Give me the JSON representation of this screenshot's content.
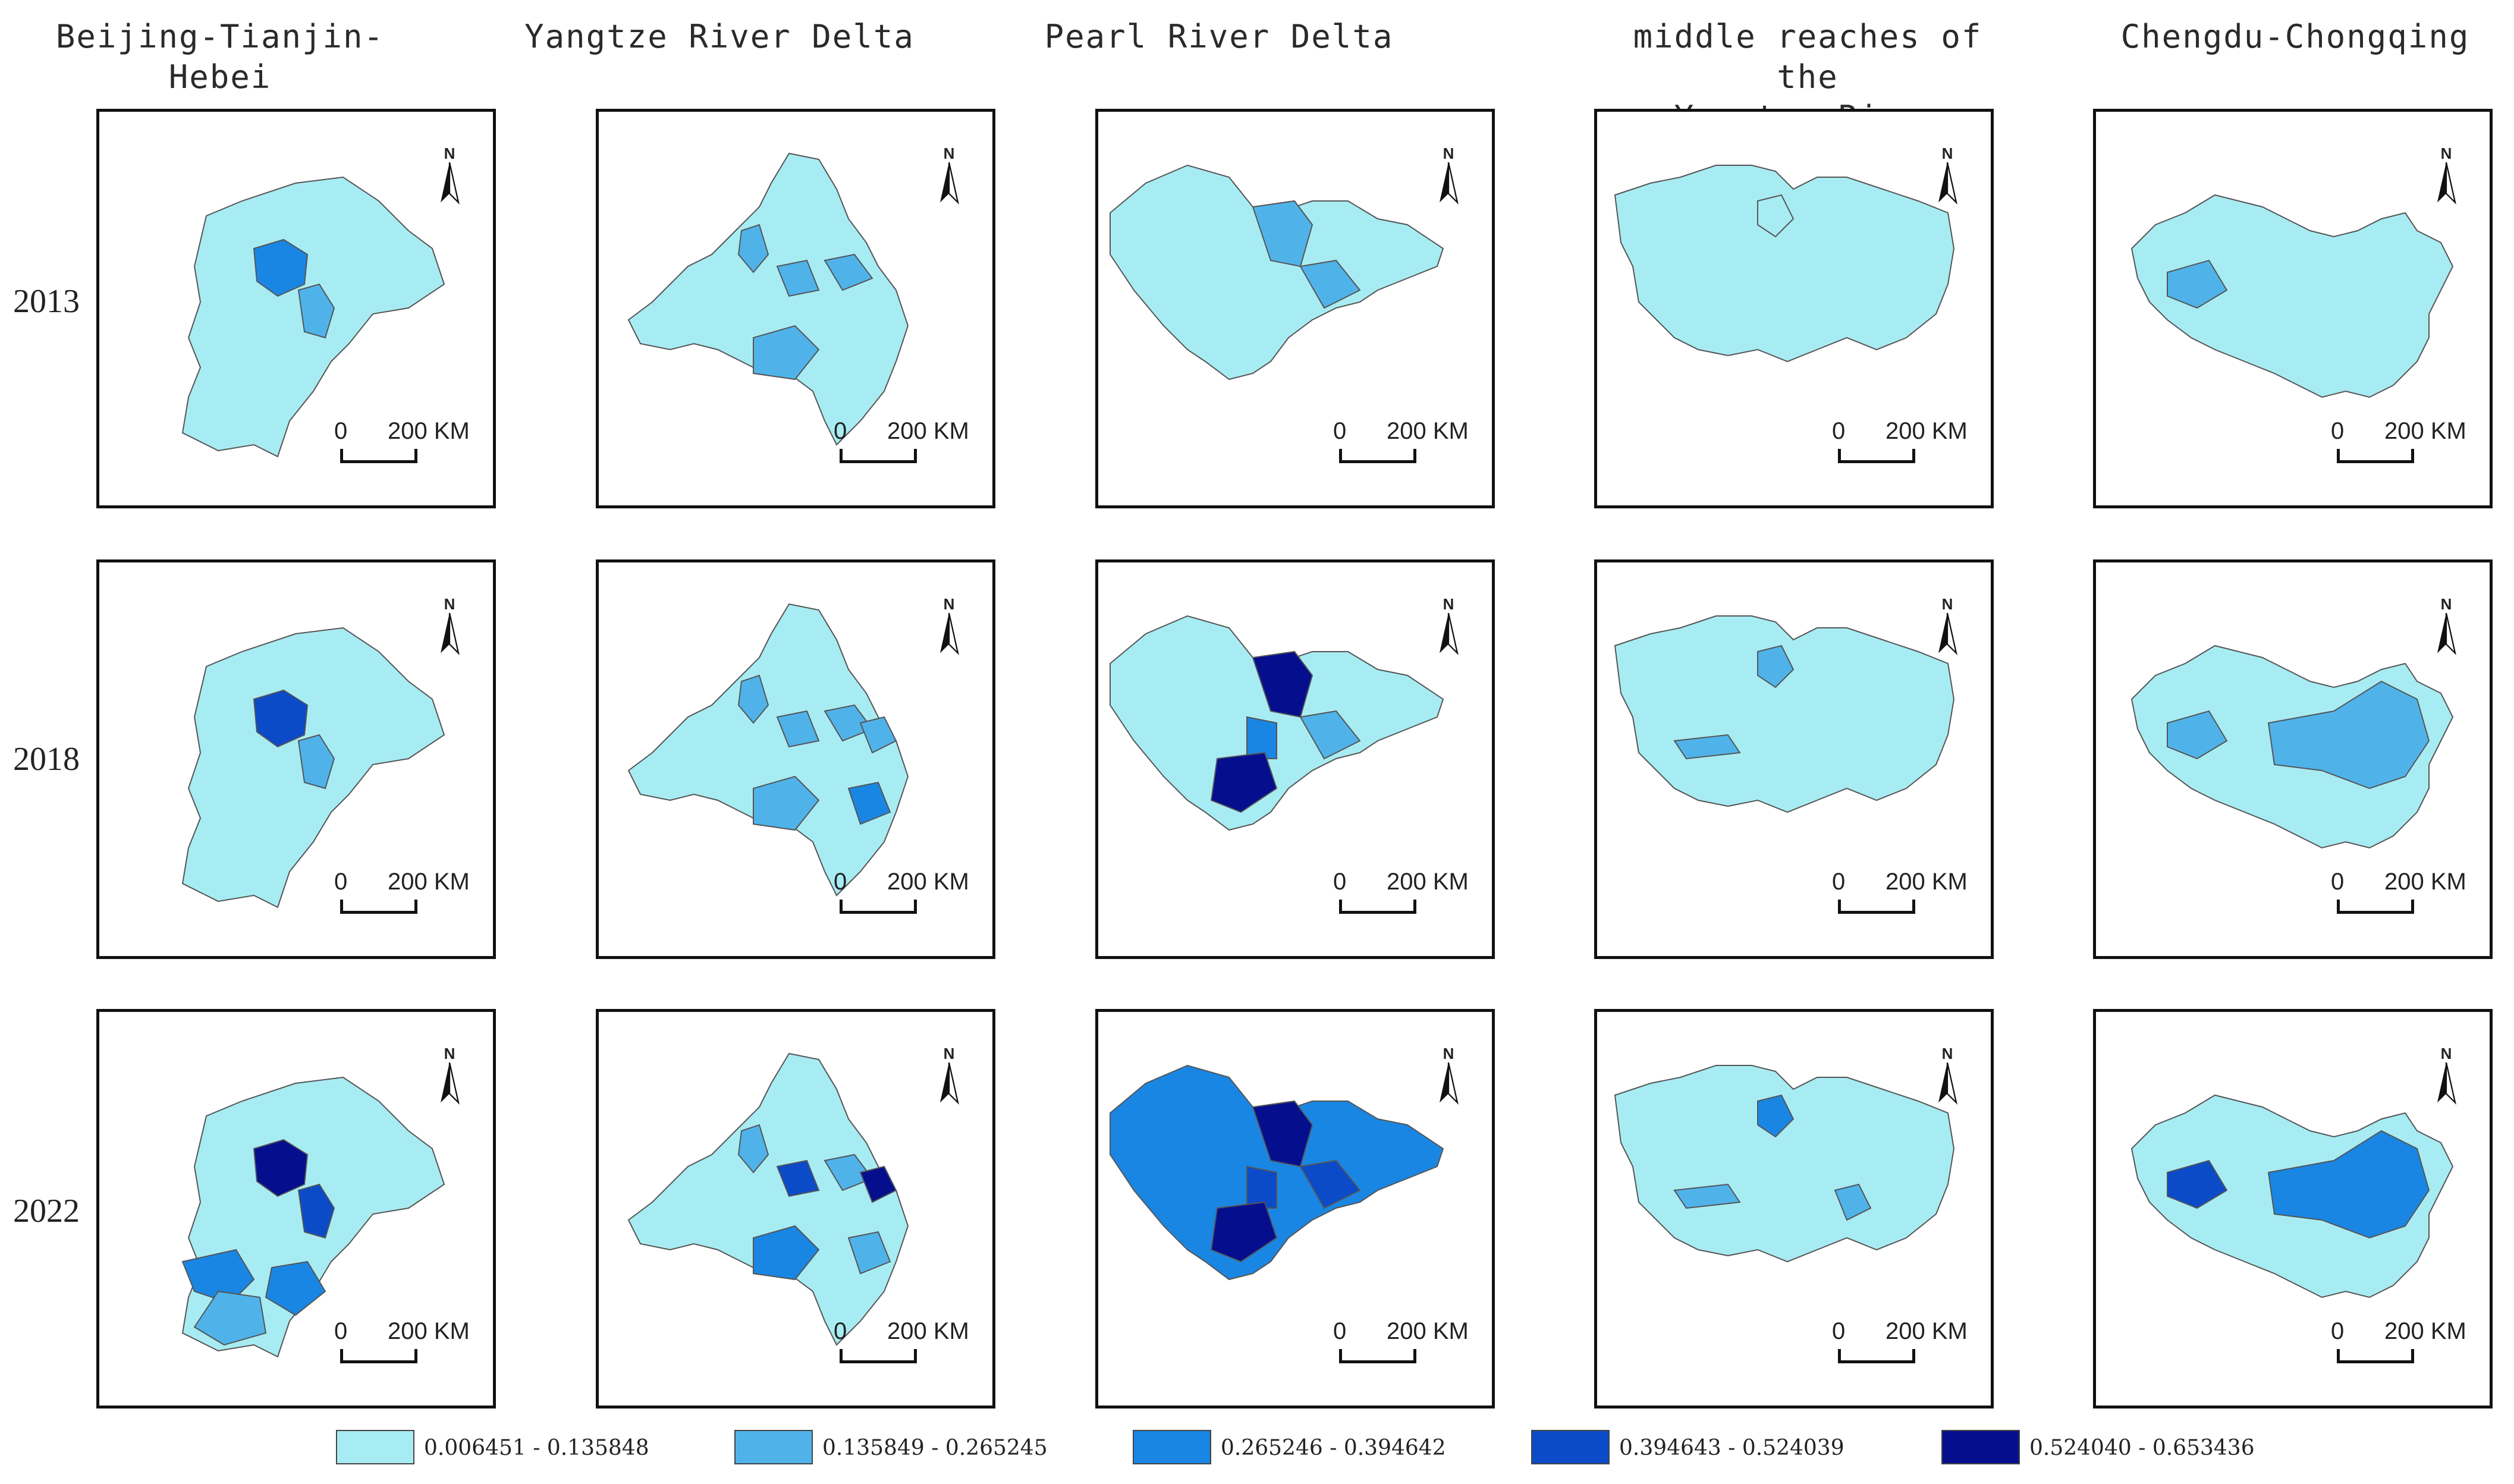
{
  "columns": [
    {
      "title": "Beijing-Tianjin-Hebei"
    },
    {
      "title": "Yangtze River Delta"
    },
    {
      "title": "Pearl River Delta"
    },
    {
      "title": "middle reaches of the\nYangtze River"
    },
    {
      "title": "Chengdu-Chongqing"
    }
  ],
  "rows": [
    {
      "label": "2013"
    },
    {
      "label": "2018"
    },
    {
      "label": "2022"
    }
  ],
  "north_label": "N",
  "scale": {
    "zero": "0",
    "km": "200 KM"
  },
  "legend": [
    {
      "label": "0.006451 - 0.135848",
      "color": "#a8ecf3"
    },
    {
      "label": "0.135849 - 0.265245",
      "color": "#4fb3ea"
    },
    {
      "label": "0.265246 - 0.394642",
      "color": "#1a86e3"
    },
    {
      "label": "0.394643 - 0.524039",
      "color": "#0b4bc8"
    },
    {
      "label": "0.524040 - 0.653436",
      "color": "#050f8e"
    }
  ],
  "map_class_levels": {
    "note_levels": "class index per highlighted region (0-4)",
    "bth": [
      [
        0,
        2,
        1
      ],
      [
        0,
        3,
        1
      ],
      [
        0,
        4,
        3,
        2,
        2,
        1
      ]
    ],
    "yrd": [
      [
        0,
        1,
        1,
        1,
        1
      ],
      [
        0,
        1,
        1,
        1,
        1,
        1,
        2
      ],
      [
        0,
        1,
        1,
        2,
        3,
        4,
        1
      ]
    ],
    "prd": [
      [
        0,
        1,
        1
      ],
      [
        0,
        4,
        1,
        2,
        4
      ],
      [
        2,
        4,
        3,
        3,
        4
      ]
    ],
    "myr": [
      [
        0,
        0
      ],
      [
        0,
        1,
        1
      ],
      [
        0,
        2,
        1,
        1
      ]
    ],
    "cc": [
      [
        0,
        1
      ],
      [
        0,
        1,
        1
      ],
      [
        0,
        3,
        2
      ]
    ]
  }
}
